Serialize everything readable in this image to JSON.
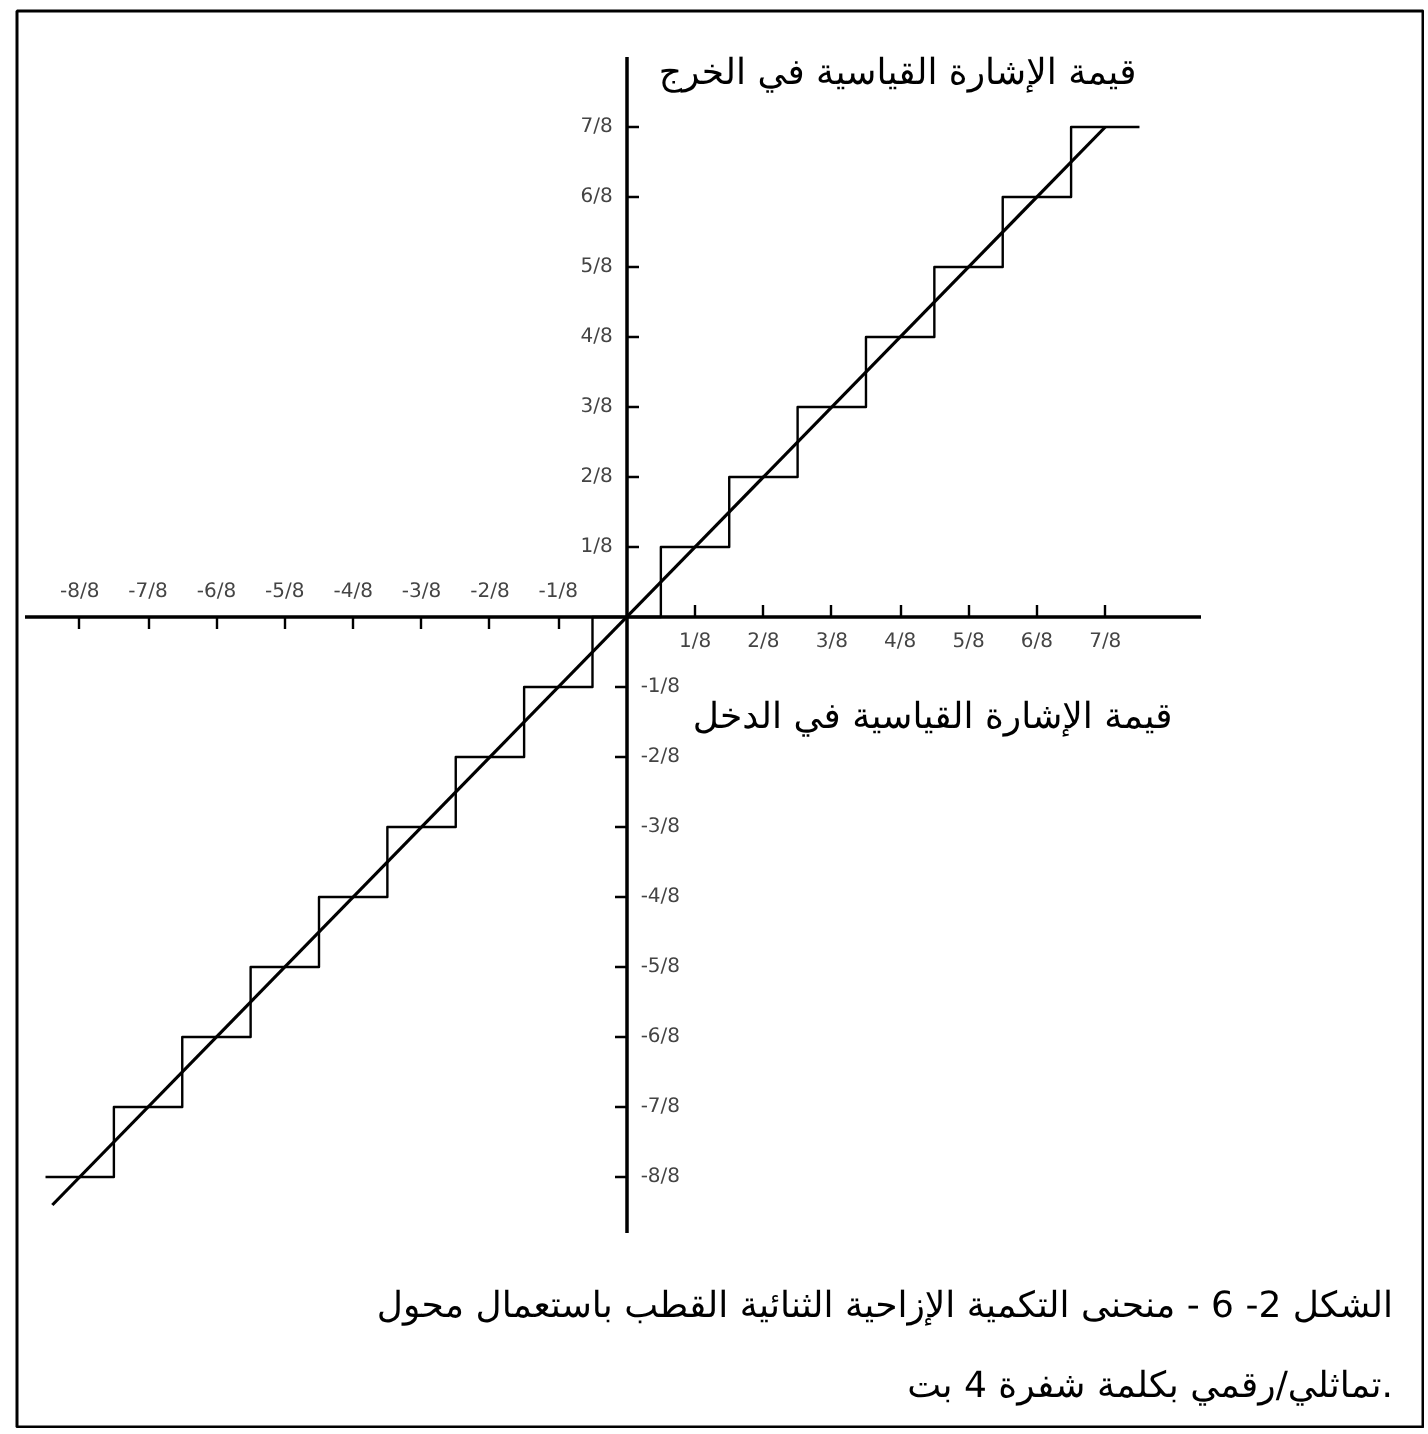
{
  "chart_data": {
    "type": "step",
    "xlabel": "قيمة الإشارة القياسية في الدخل",
    "y2label": "قيمة الإشارة القياسية في الخرج",
    "annotations": [
      "الشكل 2- 6 - منحنى التكمية الإزاحية الثنائية القطب باستعمال محول تماثلي/رقمي بكلمة شفرة 4 بت."
    ],
    "xlim": [
      -1.1,
      1.05
    ],
    "ylim": [
      -1.1,
      1.0
    ],
    "xticks": [
      {
        "value": 0.125,
        "label": "1/8"
      },
      {
        "value": 0.25,
        "label": "2/8"
      },
      {
        "value": 0.375,
        "label": "3/8"
      },
      {
        "value": 0.5,
        "label": "4/8"
      },
      {
        "value": 0.625,
        "label": "5/8"
      },
      {
        "value": 0.75,
        "label": "6/8"
      },
      {
        "value": 0.875,
        "label": "7/8"
      }
    ],
    "x2lim": [
      -1.1,
      1.05
    ],
    "x2ticks": [
      {
        "value": -1,
        "label": "-8/8"
      },
      {
        "value": -0.875,
        "label": "-7/8"
      },
      {
        "value": -0.75,
        "label": "-6/8"
      },
      {
        "value": -0.625,
        "label": "-5/8"
      },
      {
        "value": -0.5,
        "label": "-4/8"
      },
      {
        "value": -0.375,
        "label": "-3/8"
      },
      {
        "value": -0.25,
        "label": "-2/8"
      },
      {
        "value": -0.125,
        "label": "-1/8"
      }
    ],
    "yticks": [
      {
        "value": 0.125,
        "label": "1/8"
      },
      {
        "value": 0.25,
        "label": "2/8"
      },
      {
        "value": 0.375,
        "label": "3/8"
      },
      {
        "value": 0.5,
        "label": "4/8"
      },
      {
        "value": 0.625,
        "label": "5/8"
      },
      {
        "value": 0.75,
        "label": "6/8"
      },
      {
        "value": 0.875,
        "label": "7/8"
      }
    ],
    "y2lim": [
      -1.1,
      1.0
    ],
    "y2ticks": [
      {
        "value": -1,
        "label": "-8/8"
      },
      {
        "value": -0.875,
        "label": "-7/8"
      },
      {
        "value": -0.75,
        "label": "-6/8"
      },
      {
        "value": -0.625,
        "label": "-5/8"
      },
      {
        "value": -0.5,
        "label": "-4/8"
      },
      {
        "value": -0.375,
        "label": "-3/8"
      },
      {
        "value": -0.25,
        "label": "-2/8"
      },
      {
        "value": -0.125,
        "label": "-1/8"
      }
    ],
    "grid": false,
    "series": [
      {
        "color": "#000000",
        "x": [
          -1.0625,
          -0.9375,
          -0.8125,
          -0.6875,
          -0.5625,
          -0.4375,
          -0.3125,
          -0.1875,
          -0.0625,
          0.0625,
          0.1875,
          0.3125,
          0.4375,
          0.5625,
          0.6875,
          0.8125,
          0.9375
        ],
        "values": [
          -1,
          -0.875,
          -0.75,
          -0.625,
          -0.5,
          -0.375,
          -0.25,
          -0.125,
          0,
          0.125,
          0.25,
          0.375,
          0.5,
          0.625,
          0.75,
          0.875,
          0.875
        ]
      },
      {
        "type": "line",
        "color": "#000000",
        "x": [
          -1.05,
          0.875
        ],
        "values": [
          -1.05,
          0.875
        ]
      }
    ]
  }
}
